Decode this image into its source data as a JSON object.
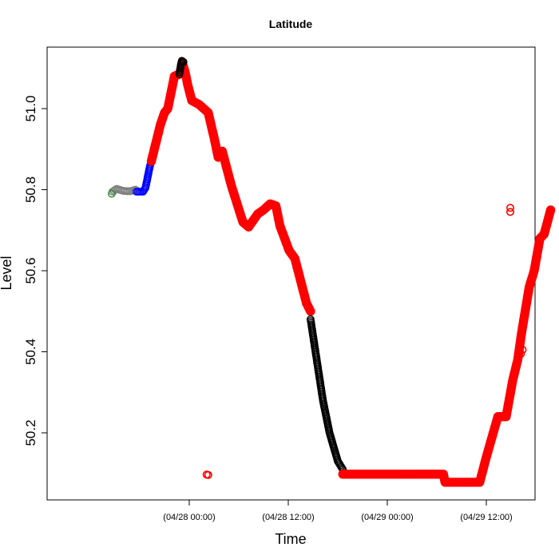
{
  "chart_data": {
    "type": "scatter",
    "title": "Latitude",
    "xlabel": "Time",
    "ylabel": "Level",
    "xlim_hours": [
      -13.0,
      36.0
    ],
    "ylim": [
      50.08,
      51.2
    ],
    "x_ticks": [
      {
        "hour": 0,
        "label": "(04/28 00:00)"
      },
      {
        "hour": 12,
        "label": "(04/28 12:00)"
      },
      {
        "hour": 24,
        "label": "(04/29 00:00)"
      },
      {
        "hour": 36,
        "label": "(04/29 12:00)"
      }
    ],
    "y_ticks": [
      {
        "value": 50.2,
        "label": "50.2"
      },
      {
        "value": 50.4,
        "label": "50.4"
      },
      {
        "value": 50.6,
        "label": "50.6"
      },
      {
        "value": 50.8,
        "label": "50.8"
      },
      {
        "value": 51.0,
        "label": "51.0"
      }
    ],
    "series": [
      {
        "color": "#808080",
        "stroke_width": 1.4,
        "dense": true,
        "points": [
          [
            -9.3,
            50.795
          ],
          [
            -8.8,
            50.802
          ],
          [
            -8.0,
            50.797
          ],
          [
            -7.2,
            50.796
          ],
          [
            -6.5,
            50.8
          ]
        ]
      },
      {
        "color": "#2e8b2e",
        "stroke_width": 1.4,
        "dense": false,
        "points": [
          [
            -9.4,
            50.79
          ]
        ]
      },
      {
        "color": "#0000ff",
        "stroke_width": 1.4,
        "dense": true,
        "points": [
          [
            -6.4,
            50.795
          ],
          [
            -5.6,
            50.795
          ],
          [
            -5.3,
            50.805
          ],
          [
            -4.8,
            50.855
          ],
          [
            -4.6,
            50.87
          ]
        ]
      },
      {
        "color": "#ff0000",
        "stroke_width": 3,
        "dense": true,
        "points": [
          [
            -4.6,
            50.87
          ],
          [
            -3.5,
            50.96
          ],
          [
            -3.0,
            50.99
          ],
          [
            -2.6,
            51.0
          ],
          [
            -1.8,
            51.08
          ],
          [
            -1.2,
            51.085
          ],
          [
            -0.8,
            51.11
          ],
          [
            -0.5,
            51.09
          ],
          [
            -0.2,
            51.06
          ],
          [
            0.3,
            51.02
          ],
          [
            1.2,
            51.01
          ],
          [
            2.3,
            50.99
          ],
          [
            3.1,
            50.92
          ],
          [
            3.5,
            50.88
          ],
          [
            4.0,
            50.895
          ],
          [
            5.1,
            50.81
          ],
          [
            6.5,
            50.72
          ],
          [
            7.2,
            50.708
          ],
          [
            8.3,
            50.74
          ],
          [
            9.0,
            50.75
          ],
          [
            9.8,
            50.765
          ],
          [
            10.5,
            50.76
          ],
          [
            11.0,
            50.71
          ],
          [
            12.1,
            50.65
          ],
          [
            12.8,
            50.63
          ],
          [
            14.2,
            50.52
          ],
          [
            14.7,
            50.5
          ]
        ]
      },
      {
        "color": "#000000",
        "stroke_width": 1.4,
        "dense": true,
        "points": [
          [
            -1.2,
            51.085
          ],
          [
            -1.0,
            51.11
          ],
          [
            -0.9,
            51.118
          ],
          [
            -0.7,
            51.115
          ]
        ]
      },
      {
        "color": "#000000",
        "stroke_width": 1.4,
        "dense": true,
        "points": [
          [
            14.7,
            50.48
          ],
          [
            15.3,
            50.4
          ],
          [
            16.2,
            50.28
          ],
          [
            17.0,
            50.2
          ],
          [
            18.0,
            50.13
          ],
          [
            18.6,
            50.11
          ]
        ]
      },
      {
        "color": "#ff0000",
        "stroke_width": 3,
        "dense": true,
        "points": [
          [
            18.6,
            50.098
          ],
          [
            22.0,
            50.098
          ],
          [
            26.0,
            50.098
          ],
          [
            29.0,
            50.098
          ],
          [
            30.8,
            50.098
          ],
          [
            31.0,
            50.078
          ],
          [
            34.0,
            50.078
          ],
          [
            35.2,
            50.078
          ],
          [
            36.0,
            50.14
          ],
          [
            37.4,
            50.24
          ],
          [
            38.0,
            50.24
          ],
          [
            38.4,
            50.24
          ],
          [
            39.2,
            50.33
          ],
          [
            39.8,
            50.38
          ],
          [
            40.3,
            50.45
          ],
          [
            41.2,
            50.56
          ],
          [
            41.8,
            50.6
          ],
          [
            42.5,
            50.68
          ],
          [
            43.0,
            50.69
          ],
          [
            43.8,
            50.75
          ]
        ]
      },
      {
        "color": "#ff0000",
        "stroke_width": 1.6,
        "dense": false,
        "points": [
          [
            38.9,
            50.755
          ],
          [
            38.9,
            50.745
          ],
          [
            2.1,
            50.097
          ],
          [
            2.3,
            50.096
          ],
          [
            40.2,
            50.395
          ],
          [
            40.4,
            50.405
          ]
        ]
      }
    ]
  }
}
